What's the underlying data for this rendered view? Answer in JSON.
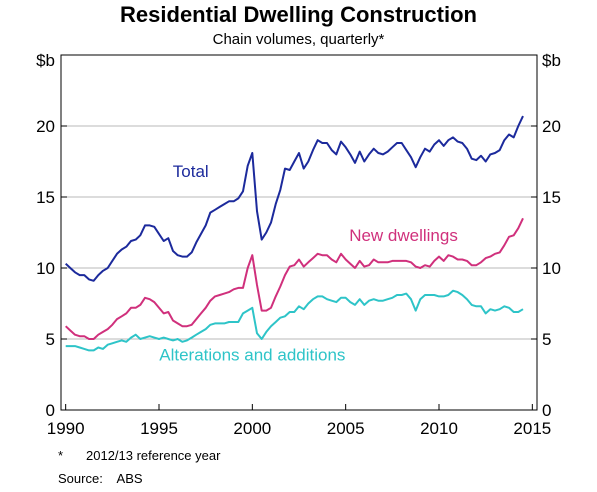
{
  "chart_data": {
    "type": "line",
    "title": "Residential Dwelling Construction",
    "subtitle": "Chain volumes, quarterly*",
    "unit_label_left": "$b",
    "unit_label_right": "$b",
    "xlim": [
      1989.75,
      2015.25
    ],
    "ylim": [
      0,
      25
    ],
    "x_ticks": [
      1990,
      1995,
      2000,
      2005,
      2010,
      2015
    ],
    "y_ticks": [
      0,
      5,
      10,
      15,
      20
    ],
    "grid": "horizontal",
    "series": [
      {
        "name": "Total",
        "color": "#1c2a9c",
        "points": [
          [
            1990.0,
            10.3
          ],
          [
            1990.25,
            10.0
          ],
          [
            1990.5,
            9.7
          ],
          [
            1990.75,
            9.5
          ],
          [
            1991.0,
            9.5
          ],
          [
            1991.25,
            9.2
          ],
          [
            1991.5,
            9.1
          ],
          [
            1991.75,
            9.5
          ],
          [
            1992.0,
            9.8
          ],
          [
            1992.25,
            10.0
          ],
          [
            1992.5,
            10.5
          ],
          [
            1992.75,
            11.0
          ],
          [
            1993.0,
            11.3
          ],
          [
            1993.25,
            11.5
          ],
          [
            1993.5,
            11.9
          ],
          [
            1993.75,
            12.0
          ],
          [
            1994.0,
            12.3
          ],
          [
            1994.25,
            13.0
          ],
          [
            1994.5,
            13.0
          ],
          [
            1994.75,
            12.9
          ],
          [
            1995.0,
            12.4
          ],
          [
            1995.25,
            11.9
          ],
          [
            1995.5,
            12.1
          ],
          [
            1995.75,
            11.2
          ],
          [
            1996.0,
            10.9
          ],
          [
            1996.25,
            10.8
          ],
          [
            1996.5,
            10.8
          ],
          [
            1996.75,
            11.1
          ],
          [
            1997.0,
            11.8
          ],
          [
            1997.25,
            12.4
          ],
          [
            1997.5,
            13.0
          ],
          [
            1997.75,
            13.9
          ],
          [
            1998.0,
            14.1
          ],
          [
            1998.25,
            14.3
          ],
          [
            1998.5,
            14.5
          ],
          [
            1998.75,
            14.7
          ],
          [
            1999.0,
            14.7
          ],
          [
            1999.25,
            14.9
          ],
          [
            1999.5,
            15.4
          ],
          [
            1999.75,
            17.2
          ],
          [
            2000.0,
            18.1
          ],
          [
            2000.25,
            14.0
          ],
          [
            2000.5,
            12.0
          ],
          [
            2000.75,
            12.5
          ],
          [
            2001.0,
            13.2
          ],
          [
            2001.25,
            14.5
          ],
          [
            2001.5,
            15.5
          ],
          [
            2001.75,
            17.0
          ],
          [
            2002.0,
            16.9
          ],
          [
            2002.25,
            17.5
          ],
          [
            2002.5,
            18.1
          ],
          [
            2002.75,
            17.0
          ],
          [
            2003.0,
            17.5
          ],
          [
            2003.25,
            18.3
          ],
          [
            2003.5,
            19.0
          ],
          [
            2003.75,
            18.8
          ],
          [
            2004.0,
            18.8
          ],
          [
            2004.25,
            18.3
          ],
          [
            2004.5,
            18.0
          ],
          [
            2004.75,
            18.9
          ],
          [
            2005.0,
            18.5
          ],
          [
            2005.25,
            18.0
          ],
          [
            2005.5,
            17.4
          ],
          [
            2005.75,
            18.2
          ],
          [
            2006.0,
            17.5
          ],
          [
            2006.25,
            18.0
          ],
          [
            2006.5,
            18.4
          ],
          [
            2006.75,
            18.1
          ],
          [
            2007.0,
            18.0
          ],
          [
            2007.25,
            18.2
          ],
          [
            2007.5,
            18.5
          ],
          [
            2007.75,
            18.8
          ],
          [
            2008.0,
            18.8
          ],
          [
            2008.25,
            18.3
          ],
          [
            2008.5,
            17.8
          ],
          [
            2008.75,
            17.1
          ],
          [
            2009.0,
            17.8
          ],
          [
            2009.25,
            18.4
          ],
          [
            2009.5,
            18.2
          ],
          [
            2009.75,
            18.7
          ],
          [
            2010.0,
            19.0
          ],
          [
            2010.25,
            18.6
          ],
          [
            2010.5,
            19.0
          ],
          [
            2010.75,
            19.2
          ],
          [
            2011.0,
            18.9
          ],
          [
            2011.25,
            18.8
          ],
          [
            2011.5,
            18.4
          ],
          [
            2011.75,
            17.7
          ],
          [
            2012.0,
            17.6
          ],
          [
            2012.25,
            17.9
          ],
          [
            2012.5,
            17.5
          ],
          [
            2012.75,
            18.0
          ],
          [
            2013.0,
            18.1
          ],
          [
            2013.25,
            18.3
          ],
          [
            2013.5,
            19.0
          ],
          [
            2013.75,
            19.4
          ],
          [
            2014.0,
            19.2
          ],
          [
            2014.25,
            20.0
          ],
          [
            2014.5,
            20.7
          ]
        ]
      },
      {
        "name": "New dwellings",
        "color": "#d0307c",
        "points": [
          [
            1990.0,
            5.9
          ],
          [
            1990.25,
            5.6
          ],
          [
            1990.5,
            5.3
          ],
          [
            1990.75,
            5.2
          ],
          [
            1991.0,
            5.2
          ],
          [
            1991.25,
            5.0
          ],
          [
            1991.5,
            5.0
          ],
          [
            1991.75,
            5.3
          ],
          [
            1992.0,
            5.5
          ],
          [
            1992.25,
            5.7
          ],
          [
            1992.5,
            6.0
          ],
          [
            1992.75,
            6.4
          ],
          [
            1993.0,
            6.6
          ],
          [
            1993.25,
            6.8
          ],
          [
            1993.5,
            7.2
          ],
          [
            1993.75,
            7.2
          ],
          [
            1994.0,
            7.4
          ],
          [
            1994.25,
            7.9
          ],
          [
            1994.5,
            7.8
          ],
          [
            1994.75,
            7.6
          ],
          [
            1995.0,
            7.2
          ],
          [
            1995.25,
            6.8
          ],
          [
            1995.5,
            6.9
          ],
          [
            1995.75,
            6.3
          ],
          [
            1996.0,
            6.1
          ],
          [
            1996.25,
            5.9
          ],
          [
            1996.5,
            5.9
          ],
          [
            1996.75,
            6.0
          ],
          [
            1997.0,
            6.4
          ],
          [
            1997.25,
            6.8
          ],
          [
            1997.5,
            7.2
          ],
          [
            1997.75,
            7.7
          ],
          [
            1998.0,
            8.0
          ],
          [
            1998.25,
            8.1
          ],
          [
            1998.5,
            8.2
          ],
          [
            1998.75,
            8.3
          ],
          [
            1999.0,
            8.5
          ],
          [
            1999.25,
            8.6
          ],
          [
            1999.5,
            8.6
          ],
          [
            1999.75,
            10.0
          ],
          [
            2000.0,
            10.9
          ],
          [
            2000.25,
            8.8
          ],
          [
            2000.5,
            7.0
          ],
          [
            2000.75,
            7.0
          ],
          [
            2001.0,
            7.2
          ],
          [
            2001.25,
            8.0
          ],
          [
            2001.5,
            8.7
          ],
          [
            2001.75,
            9.5
          ],
          [
            2002.0,
            10.1
          ],
          [
            2002.25,
            10.2
          ],
          [
            2002.5,
            10.6
          ],
          [
            2002.75,
            10.1
          ],
          [
            2003.0,
            10.4
          ],
          [
            2003.25,
            10.7
          ],
          [
            2003.5,
            11.0
          ],
          [
            2003.75,
            10.9
          ],
          [
            2004.0,
            10.9
          ],
          [
            2004.25,
            10.6
          ],
          [
            2004.5,
            10.4
          ],
          [
            2004.75,
            11.0
          ],
          [
            2005.0,
            10.6
          ],
          [
            2005.25,
            10.3
          ],
          [
            2005.5,
            10.0
          ],
          [
            2005.75,
            10.5
          ],
          [
            2006.0,
            10.1
          ],
          [
            2006.25,
            10.2
          ],
          [
            2006.5,
            10.6
          ],
          [
            2006.75,
            10.4
          ],
          [
            2007.0,
            10.4
          ],
          [
            2007.25,
            10.4
          ],
          [
            2007.5,
            10.5
          ],
          [
            2007.75,
            10.5
          ],
          [
            2008.0,
            10.5
          ],
          [
            2008.25,
            10.5
          ],
          [
            2008.5,
            10.4
          ],
          [
            2008.75,
            10.1
          ],
          [
            2009.0,
            10.0
          ],
          [
            2009.25,
            10.2
          ],
          [
            2009.5,
            10.1
          ],
          [
            2009.75,
            10.5
          ],
          [
            2010.0,
            10.8
          ],
          [
            2010.25,
            10.5
          ],
          [
            2010.5,
            10.9
          ],
          [
            2010.75,
            10.8
          ],
          [
            2011.0,
            10.6
          ],
          [
            2011.25,
            10.6
          ],
          [
            2011.5,
            10.5
          ],
          [
            2011.75,
            10.2
          ],
          [
            2012.0,
            10.2
          ],
          [
            2012.25,
            10.4
          ],
          [
            2012.5,
            10.7
          ],
          [
            2012.75,
            10.8
          ],
          [
            2013.0,
            11.0
          ],
          [
            2013.25,
            11.1
          ],
          [
            2013.5,
            11.6
          ],
          [
            2013.75,
            12.2
          ],
          [
            2014.0,
            12.3
          ],
          [
            2014.25,
            12.8
          ],
          [
            2014.5,
            13.5
          ]
        ]
      },
      {
        "name": "Alterations and additions",
        "color": "#2ec4c8",
        "points": [
          [
            1990.0,
            4.5
          ],
          [
            1990.25,
            4.5
          ],
          [
            1990.5,
            4.5
          ],
          [
            1990.75,
            4.4
          ],
          [
            1991.0,
            4.3
          ],
          [
            1991.25,
            4.2
          ],
          [
            1991.5,
            4.2
          ],
          [
            1991.75,
            4.4
          ],
          [
            1992.0,
            4.3
          ],
          [
            1992.25,
            4.6
          ],
          [
            1992.5,
            4.7
          ],
          [
            1992.75,
            4.8
          ],
          [
            1993.0,
            4.9
          ],
          [
            1993.25,
            4.8
          ],
          [
            1993.5,
            5.1
          ],
          [
            1993.75,
            5.3
          ],
          [
            1994.0,
            5.0
          ],
          [
            1994.25,
            5.1
          ],
          [
            1994.5,
            5.2
          ],
          [
            1994.75,
            5.1
          ],
          [
            1995.0,
            5.0
          ],
          [
            1995.25,
            5.1
          ],
          [
            1995.5,
            5.0
          ],
          [
            1995.75,
            4.9
          ],
          [
            1996.0,
            5.0
          ],
          [
            1996.25,
            4.8
          ],
          [
            1996.5,
            4.9
          ],
          [
            1996.75,
            5.1
          ],
          [
            1997.0,
            5.3
          ],
          [
            1997.25,
            5.5
          ],
          [
            1997.5,
            5.7
          ],
          [
            1997.75,
            6.0
          ],
          [
            1998.0,
            6.1
          ],
          [
            1998.25,
            6.1
          ],
          [
            1998.5,
            6.1
          ],
          [
            1998.75,
            6.2
          ],
          [
            1999.0,
            6.2
          ],
          [
            1999.25,
            6.2
          ],
          [
            1999.5,
            6.8
          ],
          [
            1999.75,
            7.0
          ],
          [
            2000.0,
            7.2
          ],
          [
            2000.25,
            5.4
          ],
          [
            2000.5,
            5.0
          ],
          [
            2000.75,
            5.5
          ],
          [
            2001.0,
            5.9
          ],
          [
            2001.25,
            6.2
          ],
          [
            2001.5,
            6.5
          ],
          [
            2001.75,
            6.6
          ],
          [
            2002.0,
            6.9
          ],
          [
            2002.25,
            6.9
          ],
          [
            2002.5,
            7.3
          ],
          [
            2002.75,
            7.1
          ],
          [
            2003.0,
            7.5
          ],
          [
            2003.25,
            7.8
          ],
          [
            2003.5,
            8.0
          ],
          [
            2003.75,
            8.0
          ],
          [
            2004.0,
            7.8
          ],
          [
            2004.25,
            7.7
          ],
          [
            2004.5,
            7.6
          ],
          [
            2004.75,
            7.9
          ],
          [
            2005.0,
            7.9
          ],
          [
            2005.25,
            7.6
          ],
          [
            2005.5,
            7.4
          ],
          [
            2005.75,
            7.8
          ],
          [
            2006.0,
            7.4
          ],
          [
            2006.25,
            7.7
          ],
          [
            2006.5,
            7.8
          ],
          [
            2006.75,
            7.7
          ],
          [
            2007.0,
            7.7
          ],
          [
            2007.25,
            7.8
          ],
          [
            2007.5,
            7.9
          ],
          [
            2007.75,
            8.1
          ],
          [
            2008.0,
            8.1
          ],
          [
            2008.25,
            8.2
          ],
          [
            2008.5,
            7.8
          ],
          [
            2008.75,
            7.0
          ],
          [
            2009.0,
            7.8
          ],
          [
            2009.25,
            8.1
          ],
          [
            2009.5,
            8.1
          ],
          [
            2009.75,
            8.1
          ],
          [
            2010.0,
            8.0
          ],
          [
            2010.25,
            8.0
          ],
          [
            2010.5,
            8.1
          ],
          [
            2010.75,
            8.4
          ],
          [
            2011.0,
            8.3
          ],
          [
            2011.25,
            8.1
          ],
          [
            2011.5,
            7.8
          ],
          [
            2011.75,
            7.4
          ],
          [
            2012.0,
            7.3
          ],
          [
            2012.25,
            7.3
          ],
          [
            2012.5,
            6.8
          ],
          [
            2012.75,
            7.1
          ],
          [
            2013.0,
            7.0
          ],
          [
            2013.25,
            7.1
          ],
          [
            2013.5,
            7.3
          ],
          [
            2013.75,
            7.2
          ],
          [
            2014.0,
            6.9
          ],
          [
            2014.25,
            6.9
          ],
          [
            2014.5,
            7.1
          ]
        ]
      }
    ],
    "annotations": [
      {
        "text": "Total",
        "series": 0,
        "x": 1996.7,
        "y": 16.4
      },
      {
        "text": "New dwellings",
        "series": 1,
        "x": 2008.1,
        "y": 11.9
      },
      {
        "text": "Alterations and additions",
        "series": 2,
        "x": 2000.0,
        "y": 3.5
      }
    ]
  },
  "footnotes": {
    "note_mark": "*",
    "note_text": "2012/13 reference year",
    "source_label": "Source:",
    "source_text": "ABS"
  }
}
